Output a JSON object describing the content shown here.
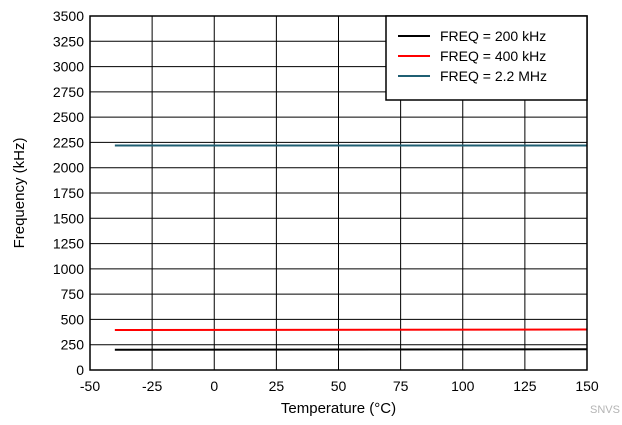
{
  "chart_data": {
    "type": "line",
    "xlabel": "Temperature (°C)",
    "ylabel": "Frequency (kHz)",
    "xlim": [
      -50,
      150
    ],
    "ylim": [
      0,
      3500
    ],
    "x_ticks": [
      -50,
      -25,
      0,
      25,
      50,
      75,
      100,
      125,
      150
    ],
    "y_ticks": [
      0,
      250,
      500,
      750,
      1000,
      1250,
      1500,
      1750,
      2000,
      2250,
      2500,
      2750,
      3000,
      3250,
      3500
    ],
    "grid": true,
    "legend_position": "top-right",
    "series": [
      {
        "name": "FREQ = 200 kHz",
        "color": "#000000",
        "x": [
          -40,
          150
        ],
        "y": [
          200,
          205
        ]
      },
      {
        "name": "FREQ = 400 kHz",
        "color": "#ff0000",
        "x": [
          -40,
          150
        ],
        "y": [
          395,
          400
        ]
      },
      {
        "name": "FREQ = 2.2 MHz",
        "color": "#1f5f73",
        "x": [
          -40,
          150
        ],
        "y": [
          2220,
          2220
        ]
      }
    ]
  },
  "watermark": "SNVS"
}
